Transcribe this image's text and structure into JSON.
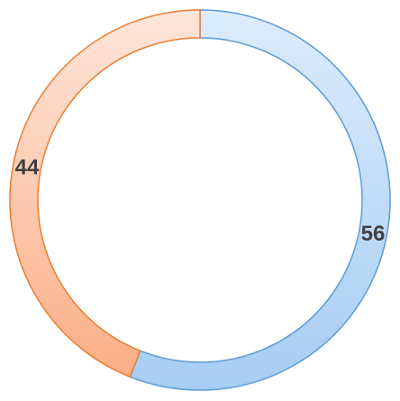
{
  "chart_data": {
    "type": "donut",
    "values": [
      56,
      44
    ],
    "colors": [
      "#5b9bd5",
      "#ed7d31"
    ]
  }
}
